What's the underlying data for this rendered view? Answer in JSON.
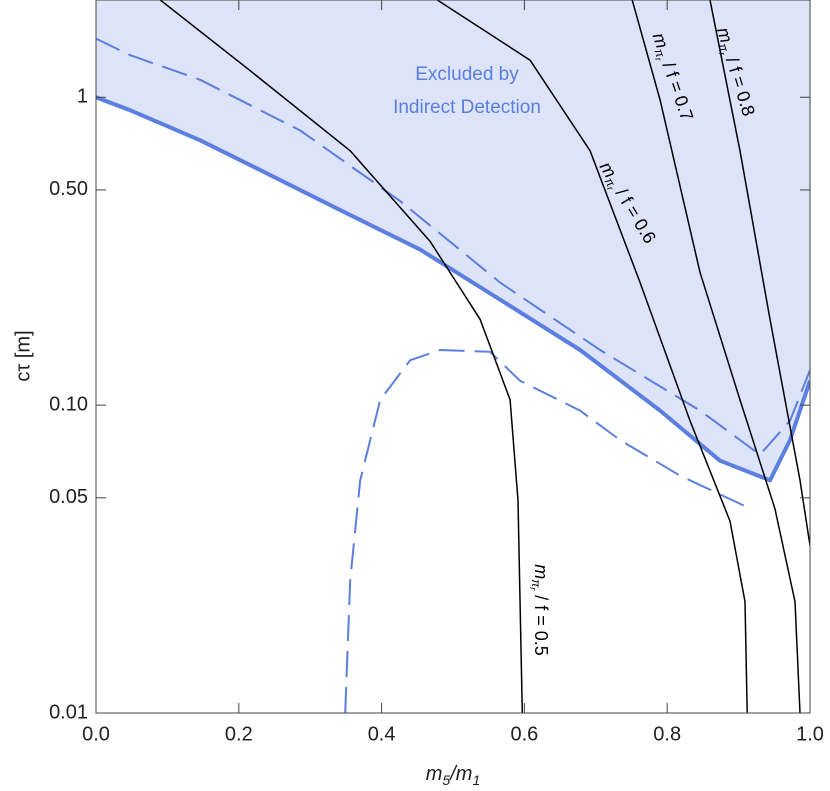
{
  "chart_data": {
    "type": "line",
    "xlabel": [
      {
        "text": "m"
      },
      {
        "text": "5",
        "sub": true
      },
      {
        "text": "/m"
      },
      {
        "text": "1",
        "sub": true
      }
    ],
    "ylabel": "cτ [m]",
    "xlim": [
      0,
      1
    ],
    "ylim": [
      0.01,
      2.07
    ],
    "log_y": true,
    "xticks": [
      {
        "value": 0,
        "label": "0.0"
      },
      0.2,
      0.4,
      0.6,
      0.8,
      {
        "value": 1,
        "label": "1.0"
      }
    ],
    "yticks": [
      0.01,
      0.05,
      {
        "value": 0.1,
        "label": "0.10"
      },
      {
        "value": 0.5,
        "label": "0.50"
      },
      1
    ],
    "annotations": [
      "Excluded by",
      "Indirect Detection"
    ],
    "annotation_color": "#5b7fe0",
    "series": [
      {
        "color": "#5b7fe0",
        "width": 4,
        "dash": null,
        "fill_above": "#dde3f8",
        "x": [
          0,
          0.048,
          0.146,
          0.23,
          0.342,
          0.454,
          0.566,
          0.678,
          0.79,
          0.874,
          0.944,
          0.972,
          1.0
        ],
        "values": [
          1.0,
          0.907,
          0.725,
          0.58,
          0.43,
          0.32,
          0.22,
          0.151,
          0.096,
          0.066,
          0.057,
          0.077,
          0.12
        ]
      },
      {
        "color": "#5b7fe0",
        "width": 2,
        "dash": "26 10",
        "x": [
          0,
          0.048,
          0.146,
          0.286,
          0.426,
          0.566,
          0.706,
          0.846,
          0.93,
          0.972,
          1.0
        ],
        "values": [
          1.55,
          1.37,
          1.14,
          0.78,
          0.46,
          0.25,
          0.151,
          0.096,
          0.069,
          0.089,
          0.13
        ]
      },
      {
        "color": "#5b7fe0",
        "width": 2,
        "dash": "26 10",
        "x": [
          0.349,
          0.356,
          0.37,
          0.398,
          0.44,
          0.482,
          0.552,
          0.594,
          0.678,
          0.734,
          0.818,
          0.909
        ],
        "values": [
          0.01,
          0.027,
          0.057,
          0.104,
          0.14,
          0.151,
          0.149,
          0.12,
          0.096,
          0.077,
          0.059,
          0.047
        ]
      },
      {
        "color": "#000000",
        "width": 1.5,
        "dash": null,
        "label": {
          "base": "m",
          "sub": "π",
          "subsub": "r",
          "rest": " / f = 0.5"
        },
        "x": [
          0.09,
          0.216,
          0.356,
          0.468,
          0.538,
          0.58,
          0.591,
          0.597
        ],
        "values": [
          2.07,
          1.22,
          0.67,
          0.34,
          0.19,
          0.104,
          0.049,
          0.01
        ]
      },
      {
        "color": "#000000",
        "width": 1.5,
        "dash": null,
        "label": {
          "base": "m",
          "sub": "π",
          "subsub": "r",
          "rest": " / f = 0.6"
        },
        "x": [
          0.478,
          0.608,
          0.692,
          0.762,
          0.832,
          0.888,
          0.909,
          0.912
        ],
        "values": [
          2.07,
          1.32,
          0.67,
          0.25,
          0.089,
          0.042,
          0.023,
          0.01
        ]
      },
      {
        "color": "#000000",
        "width": 1.5,
        "dash": null,
        "label": {
          "base": "m",
          "sub": "π",
          "subsub": "r",
          "rest": " / f = 0.7"
        },
        "x": [
          0.751,
          0.79,
          0.846,
          0.902,
          0.951,
          0.979,
          0.986
        ],
        "values": [
          2.07,
          0.98,
          0.27,
          0.104,
          0.046,
          0.023,
          0.01
        ]
      },
      {
        "color": "#000000",
        "width": 1.5,
        "dash": null,
        "label": {
          "base": "m",
          "sub": "π",
          "subsub": "r",
          "rest": " / f = 0.8"
        },
        "x": [
          0.86,
          0.902,
          0.944,
          0.986,
          1.0
        ],
        "values": [
          2.07,
          0.67,
          0.19,
          0.057,
          0.035
        ]
      }
    ]
  }
}
